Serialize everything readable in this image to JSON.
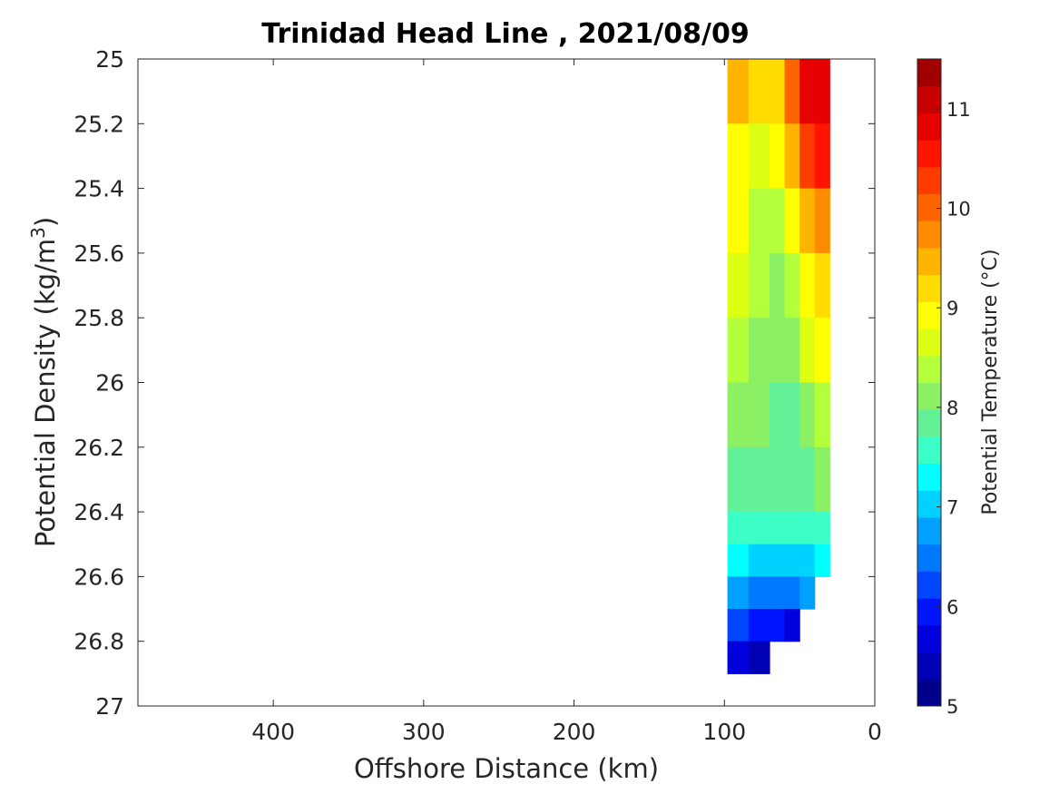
{
  "chart_data": {
    "type": "heatmap",
    "title": "Trinidad Head Line , 2021/08/09",
    "xlabel": "Offshore Distance (km)",
    "ylabel": "Potential Density (kg/m",
    "ylabel_sup": "3",
    "ylabel_close": ")",
    "colorbar_label": "Potential Temperature (°C)",
    "xlim": [
      490,
      0
    ],
    "ylim": [
      25,
      27
    ],
    "xticks": [
      400,
      300,
      200,
      100,
      0
    ],
    "xtick_labels": [
      "400",
      "300",
      "200",
      "100",
      "0"
    ],
    "yticks": [
      25,
      25.2,
      25.4,
      25.6,
      25.8,
      26,
      26.2,
      26.4,
      26.6,
      26.8,
      27
    ],
    "ytick_labels": [
      "25",
      "25.2",
      "25.4",
      "25.6",
      "25.8",
      "26",
      "26.2",
      "26.4",
      "26.6",
      "26.8",
      "27"
    ],
    "clim": [
      5,
      11.5
    ],
    "colorbar_ticks": [
      5,
      6,
      7,
      8,
      9,
      10,
      11
    ],
    "colorbar_tick_labels": [
      "5",
      "6",
      "7",
      "8",
      "9",
      "10",
      "11"
    ],
    "colorbar_levels": [
      "#00008c",
      "#0000b4",
      "#0000dc",
      "#0014ff",
      "#0046ff",
      "#0078ff",
      "#00a0ff",
      "#00d2ff",
      "#00ffff",
      "#3cffc8",
      "#64f096",
      "#8cf064",
      "#b4ff3c",
      "#dcff14",
      "#ffff00",
      "#ffdc00",
      "#ffb400",
      "#ff8c00",
      "#ff6400",
      "#ff3c00",
      "#ff1400",
      "#e60000",
      "#c80000",
      "#a00000"
    ],
    "stations_km": [
      98,
      84,
      70,
      60,
      50,
      40,
      30
    ],
    "density_levels": [
      25.0,
      25.2,
      25.4,
      25.6,
      25.8,
      26.0,
      26.2,
      26.4,
      26.5,
      26.6,
      26.7,
      26.8,
      26.9
    ],
    "temperature_grid": [
      [
        10.0,
        9.3,
        9.2,
        9.6,
        10.8,
        11.1,
        11.0
      ],
      [
        9.2,
        8.9,
        8.9,
        9.3,
        10.3,
        10.9,
        10.6
      ],
      [
        9.0,
        8.8,
        8.5,
        8.7,
        9.5,
        10.3,
        10.0
      ],
      [
        8.8,
        8.6,
        8.1,
        8.3,
        8.9,
        9.4,
        9.4
      ],
      [
        8.6,
        8.3,
        8.0,
        8.0,
        8.5,
        8.9,
        9.0
      ],
      [
        8.5,
        8.2,
        8.0,
        8.0,
        8.1,
        8.6,
        8.7
      ],
      [
        8.0,
        7.9,
        7.9,
        7.8,
        7.9,
        8.2,
        8.3
      ],
      [
        7.9,
        7.8,
        7.8,
        7.7,
        7.8,
        7.8,
        7.9
      ],
      [
        7.5,
        7.4,
        7.3,
        7.3,
        7.3,
        7.4,
        7.5
      ],
      [
        7.0,
        6.9,
        6.8,
        6.7,
        6.8,
        7.0,
        7.3
      ],
      [
        6.6,
        6.4,
        6.3,
        6.1,
        6.3,
        6.4,
        null
      ],
      [
        5.9,
        5.8,
        5.6,
        5.4,
        5.4,
        null,
        null
      ],
      [
        5.3,
        5.2,
        5.1,
        null,
        null,
        null,
        null
      ]
    ]
  }
}
